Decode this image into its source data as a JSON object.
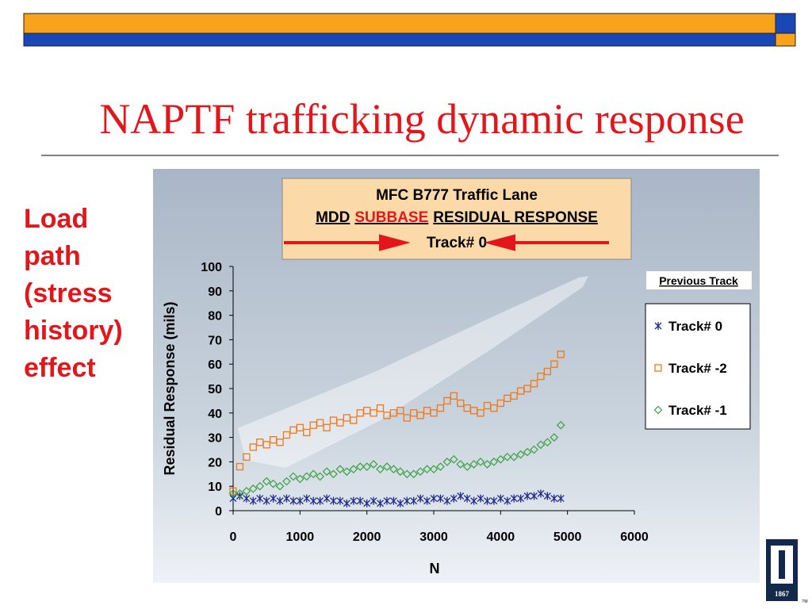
{
  "slide": {
    "title": "NAPTF trafficking dynamic response",
    "side_text": [
      "Load",
      "path",
      "(stress",
      "history)",
      "effect"
    ],
    "logo_year": "1867",
    "logo_mark": "TM"
  },
  "chart_data": {
    "type": "scatter",
    "title": "MFC B777 Traffic Lane",
    "subtitle_parts": [
      "MDD",
      "SUBBASE",
      "RESIDUAL RESPONSE"
    ],
    "track_label": "Track# 0",
    "x_label": "N",
    "y_label": "Residual Response (mils)",
    "legend_title": "Previous Track",
    "xlim": [
      0,
      6000
    ],
    "xticks": [
      0,
      1000,
      2000,
      3000,
      4000,
      5000,
      6000
    ],
    "ylim": [
      0,
      100
    ],
    "yticks": [
      0,
      10,
      20,
      30,
      40,
      50,
      60,
      70,
      80,
      90,
      100
    ],
    "grid": false,
    "x": [
      0,
      100,
      200,
      300,
      400,
      500,
      600,
      700,
      800,
      900,
      1000,
      1100,
      1200,
      1300,
      1400,
      1500,
      1600,
      1700,
      1800,
      1900,
      2000,
      2100,
      2200,
      2300,
      2400,
      2500,
      2600,
      2700,
      2800,
      2900,
      3000,
      3100,
      3200,
      3300,
      3400,
      3500,
      3600,
      3700,
      3800,
      3900,
      4000,
      4100,
      4200,
      4300,
      4400,
      4500,
      4600,
      4700,
      4800,
      4900
    ],
    "series": [
      {
        "name": "Track# 0",
        "color": "#1f2a8c",
        "marker": "asterisk",
        "values": [
          5,
          6,
          5,
          4,
          5,
          4,
          5,
          4,
          5,
          4,
          4,
          5,
          4,
          4,
          5,
          4,
          4,
          3,
          4,
          4,
          3,
          4,
          3,
          4,
          4,
          3,
          4,
          4,
          5,
          4,
          5,
          5,
          4,
          5,
          6,
          5,
          4,
          5,
          4,
          4,
          5,
          4,
          5,
          5,
          6,
          6,
          7,
          6,
          5,
          5
        ]
      },
      {
        "name": "Track# -2",
        "color": "#f07818",
        "marker": "square",
        "values": [
          8,
          18,
          22,
          26,
          28,
          27,
          29,
          28,
          31,
          33,
          34,
          32,
          35,
          36,
          34,
          37,
          36,
          38,
          37,
          40,
          41,
          40,
          42,
          39,
          40,
          41,
          38,
          40,
          39,
          41,
          40,
          42,
          45,
          47,
          44,
          42,
          41,
          40,
          43,
          42,
          44,
          46,
          47,
          49,
          50,
          52,
          55,
          57,
          60,
          64
        ]
      },
      {
        "name": "Track# -1",
        "color": "#3aa040",
        "marker": "diamond",
        "values": [
          7,
          7,
          8,
          9,
          10,
          12,
          11,
          10,
          12,
          14,
          13,
          14,
          15,
          14,
          16,
          15,
          17,
          16,
          17,
          18,
          18,
          19,
          17,
          18,
          17,
          16,
          15,
          15,
          16,
          17,
          17,
          18,
          20,
          21,
          19,
          18,
          19,
          20,
          19,
          20,
          21,
          22,
          22,
          23,
          24,
          25,
          27,
          28,
          30,
          35
        ]
      }
    ]
  }
}
